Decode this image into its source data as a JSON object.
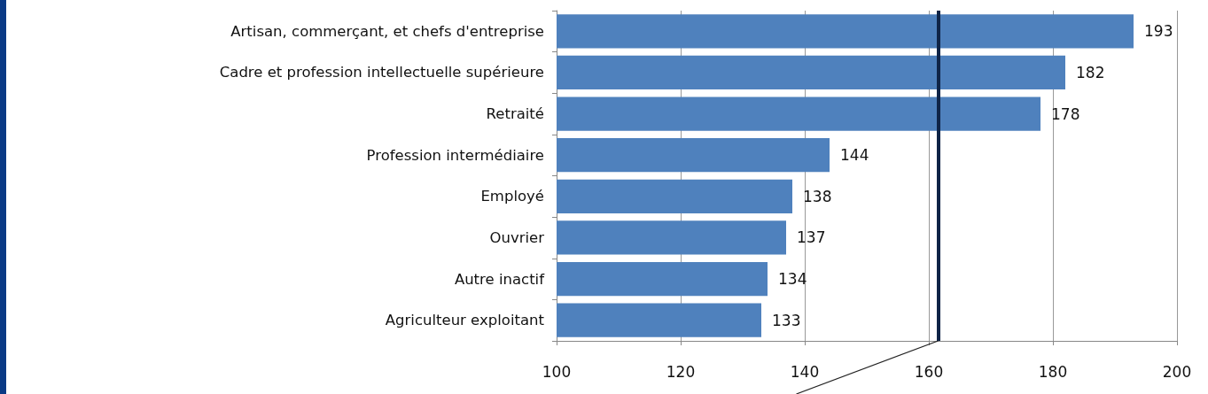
{
  "chart_data": {
    "type": "bar",
    "orientation": "horizontal",
    "categories": [
      "Artisan, commerçant, et chefs d'entreprise",
      "Cadre et profession intellectuelle supérieure",
      "Retraité",
      "Profession intermédiaire",
      "Employé",
      "Ouvrier",
      "Autre inactif",
      "Agriculteur exploitant"
    ],
    "values": [
      193,
      182,
      178,
      144,
      138,
      137,
      134,
      133
    ],
    "color": "#4f81bd",
    "xlim": [
      100,
      200
    ],
    "xticks": [
      100,
      120,
      140,
      160,
      180,
      200
    ],
    "grid": "x",
    "data_labels": true,
    "ref_lines": [
      {
        "axis": "x",
        "value": 161.5,
        "color": "#0f2447"
      }
    ]
  }
}
